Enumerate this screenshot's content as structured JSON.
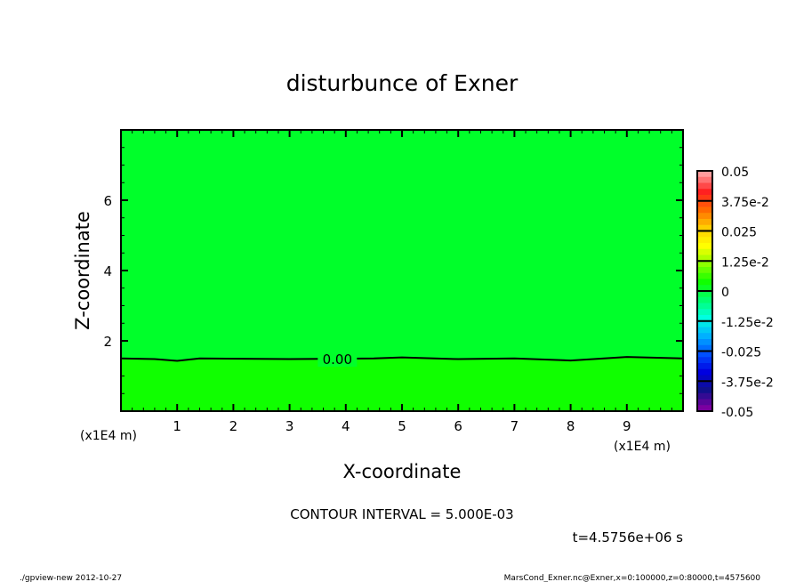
{
  "chart_data": {
    "type": "heatmap",
    "title": "disturbunce of Exner",
    "xlabel": "X-coordinate",
    "ylabel": "Z-coordinate",
    "x_unit_label": "(x1E4 m)",
    "y_unit_label": "(x1E4 m)",
    "xlim": [
      0,
      10
    ],
    "ylim": [
      0,
      8
    ],
    "xticks": [
      1,
      2,
      3,
      4,
      5,
      6,
      7,
      8,
      9
    ],
    "yticks": [
      2,
      4,
      6
    ],
    "regions": [
      {
        "range": [
          -0.005,
          0
        ],
        "color": "#00ff2a",
        "z_from": 1.5,
        "z_to": 8
      },
      {
        "range": [
          0,
          0.005
        ],
        "color": "#10ff00",
        "z_from": 0,
        "z_to": 1.5
      }
    ],
    "contour": {
      "label": "0.00",
      "label_x": 3.85,
      "points": [
        [
          0,
          1.5
        ],
        [
          0.6,
          1.48
        ],
        [
          1,
          1.43
        ],
        [
          1.4,
          1.5
        ],
        [
          3,
          1.48
        ],
        [
          4.5,
          1.5
        ],
        [
          5,
          1.53
        ],
        [
          6,
          1.48
        ],
        [
          7,
          1.5
        ],
        [
          8,
          1.44
        ],
        [
          9,
          1.54
        ],
        [
          10,
          1.5
        ]
      ]
    },
    "colorbar": {
      "range": [
        -0.05,
        0.05
      ],
      "tick_labels": [
        "0.05",
        "3.75e-2",
        "0.025",
        "1.25e-2",
        "0",
        "-1.25e-2",
        "-0.025",
        "-3.75e-2",
        "-0.05"
      ],
      "key_colors": [
        "#ff9c9c",
        "#ff2020",
        "#ff6a00",
        "#ffcc00",
        "#ffff00",
        "#8cff00",
        "#10ff00",
        "#00ff70",
        "#00ffe0",
        "#00b0ff",
        "#0050ff",
        "#0000e0",
        "#10108c",
        "#7a00a0"
      ]
    },
    "contour_interval_text": "CONTOUR INTERVAL = 5.000E-03",
    "time_text": "t=4.5756e+06 s"
  },
  "footer": {
    "left": "./gpview-new  2012-10-27",
    "right": "MarsCond_Exner.nc@Exner,x=0:100000,z=0:80000,t=4575600"
  }
}
